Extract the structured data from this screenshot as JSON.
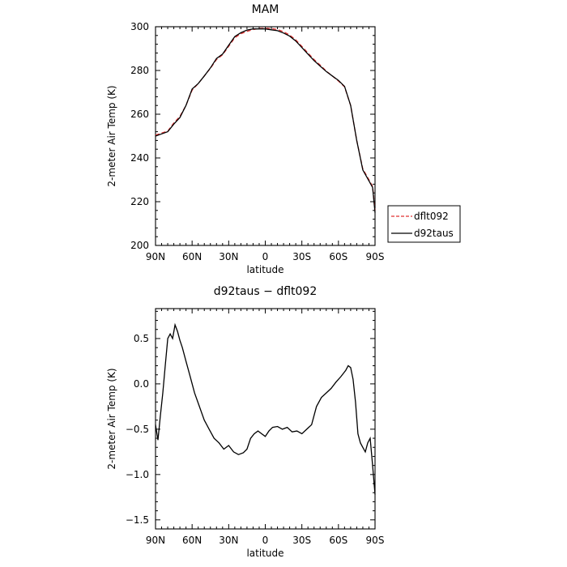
{
  "chart_data": [
    {
      "type": "line",
      "title": "MAM",
      "xlabel": "latitude",
      "ylabel": "2-meter Air Temp (K)",
      "xlim": [
        90,
        -90
      ],
      "ylim": [
        200,
        300
      ],
      "xticks": [
        90,
        60,
        30,
        0,
        -30,
        -60,
        -90
      ],
      "xtick_labels": [
        "90N",
        "60N",
        "30N",
        "0",
        "30S",
        "60S",
        "90S"
      ],
      "yticks": [
        200,
        220,
        240,
        260,
        280,
        300
      ],
      "ytick_labels": [
        "200",
        "220",
        "240",
        "260",
        "280",
        "300"
      ],
      "legend_position": "right",
      "series": [
        {
          "name": "dflt092",
          "color": "#e03030",
          "style": "dashed",
          "points": [
            [
              90,
              250.4
            ],
            [
              85,
              251.4
            ],
            [
              80,
              252.3
            ],
            [
              75,
              256
            ],
            [
              70,
              259
            ],
            [
              65,
              264
            ],
            [
              60,
              271
            ],
            [
              55,
              274
            ],
            [
              50,
              277.5
            ],
            [
              45,
              281
            ],
            [
              40,
              285
            ],
            [
              35,
              287.2
            ],
            [
              30,
              291
            ],
            [
              25,
              295
            ],
            [
              20,
              296.8
            ],
            [
              15,
              297.9
            ],
            [
              10,
              298.7
            ],
            [
              5,
              299.2
            ],
            [
              0,
              299.3
            ],
            [
              -5,
              299.2
            ],
            [
              -10,
              298.7
            ],
            [
              -15,
              297.7
            ],
            [
              -20,
              296.2
            ],
            [
              -25,
              294
            ],
            [
              -30,
              291
            ],
            [
              -35,
              288
            ],
            [
              -40,
              285
            ],
            [
              -45,
              282.5
            ],
            [
              -50,
              279.7
            ],
            [
              -55,
              277.5
            ],
            [
              -60,
              275.2
            ],
            [
              -65,
              272.5
            ],
            [
              -70,
              264
            ],
            [
              -75,
              248
            ],
            [
              -80,
              235
            ],
            [
              -85,
              230
            ],
            [
              -88,
              227
            ],
            [
              -90,
              216
            ]
          ]
        },
        {
          "name": "d92taus",
          "color": "#000000",
          "style": "solid",
          "points": [
            [
              90,
              250
            ],
            [
              85,
              251
            ],
            [
              80,
              252
            ],
            [
              75,
              255.5
            ],
            [
              70,
              258.5
            ],
            [
              65,
              264
            ],
            [
              60,
              271.5
            ],
            [
              55,
              274
            ],
            [
              50,
              277.5
            ],
            [
              45,
              281.2
            ],
            [
              40,
              285.5
            ],
            [
              35,
              287.5
            ],
            [
              30,
              291.5
            ],
            [
              25,
              295.5
            ],
            [
              20,
              297.3
            ],
            [
              15,
              298.5
            ],
            [
              10,
              299
            ],
            [
              5,
              299
            ],
            [
              0,
              299
            ],
            [
              -5,
              298.6
            ],
            [
              -10,
              298.2
            ],
            [
              -15,
              297.1
            ],
            [
              -20,
              295.7
            ],
            [
              -25,
              293.5
            ],
            [
              -30,
              290.5
            ],
            [
              -35,
              287.5
            ],
            [
              -40,
              284.5
            ],
            [
              -45,
              282
            ],
            [
              -50,
              279.5
            ],
            [
              -55,
              277.5
            ],
            [
              -60,
              275.5
            ],
            [
              -65,
              272.7
            ],
            [
              -70,
              264
            ],
            [
              -75,
              248
            ],
            [
              -80,
              234.5
            ],
            [
              -85,
              229.5
            ],
            [
              -88,
              226.5
            ],
            [
              -90,
              215
            ]
          ]
        }
      ]
    },
    {
      "type": "line",
      "title": "d92taus − dflt092",
      "xlabel": "latitude",
      "ylabel": "2-meter Air Temp (K)",
      "xlim": [
        90,
        -90
      ],
      "ylim": [
        -1.6,
        0.83
      ],
      "xticks": [
        90,
        60,
        30,
        0,
        -30,
        -60,
        -90
      ],
      "xtick_labels": [
        "90N",
        "60N",
        "30N",
        "0",
        "30S",
        "60S",
        "90S"
      ],
      "yticks": [
        0.5,
        0.0,
        -0.5,
        -1.0,
        -1.5
      ],
      "ytick_labels": [
        "0.5",
        "0.0",
        "−0.5",
        "−1.0",
        "−1.5"
      ],
      "series": [
        {
          "color": "#000000",
          "style": "solid",
          "points": [
            [
              90,
              -0.45
            ],
            [
              88,
              -0.62
            ],
            [
              86,
              -0.35
            ],
            [
              84,
              -0.1
            ],
            [
              82,
              0.2
            ],
            [
              80,
              0.5
            ],
            [
              78,
              0.55
            ],
            [
              76,
              0.5
            ],
            [
              74,
              0.65
            ],
            [
              72,
              0.58
            ],
            [
              70,
              0.48
            ],
            [
              68,
              0.4
            ],
            [
              65,
              0.25
            ],
            [
              62,
              0.1
            ],
            [
              58,
              -0.1
            ],
            [
              54,
              -0.25
            ],
            [
              50,
              -0.4
            ],
            [
              46,
              -0.5
            ],
            [
              42,
              -0.6
            ],
            [
              38,
              -0.65
            ],
            [
              34,
              -0.72
            ],
            [
              30,
              -0.68
            ],
            [
              26,
              -0.75
            ],
            [
              22,
              -0.78
            ],
            [
              18,
              -0.76
            ],
            [
              15,
              -0.72
            ],
            [
              12,
              -0.6
            ],
            [
              9,
              -0.55
            ],
            [
              6,
              -0.52
            ],
            [
              3,
              -0.55
            ],
            [
              0,
              -0.58
            ],
            [
              -3,
              -0.52
            ],
            [
              -6,
              -0.48
            ],
            [
              -10,
              -0.47
            ],
            [
              -14,
              -0.5
            ],
            [
              -18,
              -0.48
            ],
            [
              -22,
              -0.53
            ],
            [
              -26,
              -0.52
            ],
            [
              -30,
              -0.55
            ],
            [
              -34,
              -0.5
            ],
            [
              -38,
              -0.45
            ],
            [
              -42,
              -0.25
            ],
            [
              -46,
              -0.15
            ],
            [
              -50,
              -0.1
            ],
            [
              -54,
              -0.05
            ],
            [
              -58,
              0.02
            ],
            [
              -62,
              0.08
            ],
            [
              -66,
              0.15
            ],
            [
              -68,
              0.2
            ],
            [
              -70,
              0.18
            ],
            [
              -72,
              0.05
            ],
            [
              -74,
              -0.2
            ],
            [
              -76,
              -0.55
            ],
            [
              -78,
              -0.65
            ],
            [
              -80,
              -0.7
            ],
            [
              -82,
              -0.75
            ],
            [
              -84,
              -0.65
            ],
            [
              -86,
              -0.6
            ],
            [
              -88,
              -0.9
            ],
            [
              -90,
              -1.22
            ]
          ]
        }
      ]
    }
  ]
}
